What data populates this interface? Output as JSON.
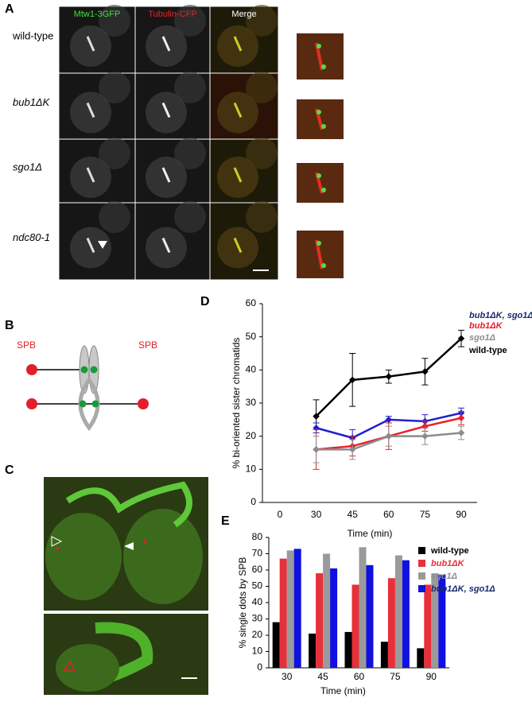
{
  "panel_a": {
    "label": "A",
    "columns": [
      "Mtw1-3GFP",
      "Tubulin-CFP",
      "Merge"
    ],
    "rows": [
      "wild-type",
      "bub1ΔK",
      "sgo1Δ",
      "ndc80-1"
    ]
  },
  "panel_b": {
    "label": "B",
    "spb": [
      "SPB",
      "SPB"
    ]
  },
  "panel_c": {
    "label": "C"
  },
  "chart_data": [
    {
      "type": "line",
      "label": "D",
      "y_label": "% bi-oriented sister chromatids",
      "x_label": "Time (min)",
      "categories": [
        "0",
        "30",
        "45",
        "60",
        "75",
        "90"
      ],
      "ylim": [
        0,
        60
      ],
      "yticks": [
        0,
        10,
        20,
        30,
        40,
        50,
        60
      ],
      "series": [
        {
          "name": "wild-type",
          "color": "#000000",
          "label_color": "#000000",
          "values": [
            null,
            26,
            37,
            38,
            39.5,
            49.5
          ],
          "errors": [
            null,
            5,
            8,
            2,
            4,
            2.5
          ]
        },
        {
          "name": "bub1ΔK, sgo1Δ",
          "color": "#2020d0",
          "label_color": "#1a2a6c",
          "values": [
            null,
            22.5,
            19.5,
            25,
            24.5,
            27
          ],
          "errors": [
            null,
            1.5,
            2.5,
            1,
            2,
            1.5
          ]
        },
        {
          "name": "bub1ΔK",
          "color": "#e8202a",
          "label_color": "#e8202a",
          "values": [
            null,
            16,
            17,
            20,
            23,
            25.5
          ],
          "errors": [
            null,
            6,
            3,
            4,
            1.5,
            2
          ]
        },
        {
          "name": "sgo1Δ",
          "color": "#8c8c8c",
          "label_color": "#8c8c8c",
          "values": [
            null,
            16,
            16,
            20,
            20,
            21
          ],
          "errors": [
            null,
            4,
            3,
            3,
            2.5,
            2
          ]
        }
      ]
    },
    {
      "type": "bar",
      "label": "E",
      "y_label": "% single dots by SPB",
      "x_label": "Time (min)",
      "categories": [
        "30",
        "45",
        "60",
        "75",
        "90"
      ],
      "ylim": [
        0,
        80
      ],
      "yticks": [
        0,
        10,
        20,
        30,
        40,
        50,
        60,
        70,
        80
      ],
      "series": [
        {
          "name": "wild-type",
          "color": "#000000",
          "label_color": "#000000",
          "values": [
            28,
            21,
            22,
            16,
            12
          ]
        },
        {
          "name": "bub1ΔK",
          "color": "#e8303a",
          "label_color": "#e8303a",
          "values": [
            67,
            58,
            51,
            55,
            51
          ]
        },
        {
          "name": "sgo1Δ",
          "color": "#9a9a9a",
          "label_color": "#8c8c8c",
          "values": [
            72,
            70,
            74,
            69,
            58
          ]
        },
        {
          "name": "bub1ΔK, sgo1Δ",
          "color": "#1010e0",
          "label_color": "#1a2a6c",
          "values": [
            73,
            61,
            63,
            66,
            57
          ]
        }
      ]
    }
  ]
}
